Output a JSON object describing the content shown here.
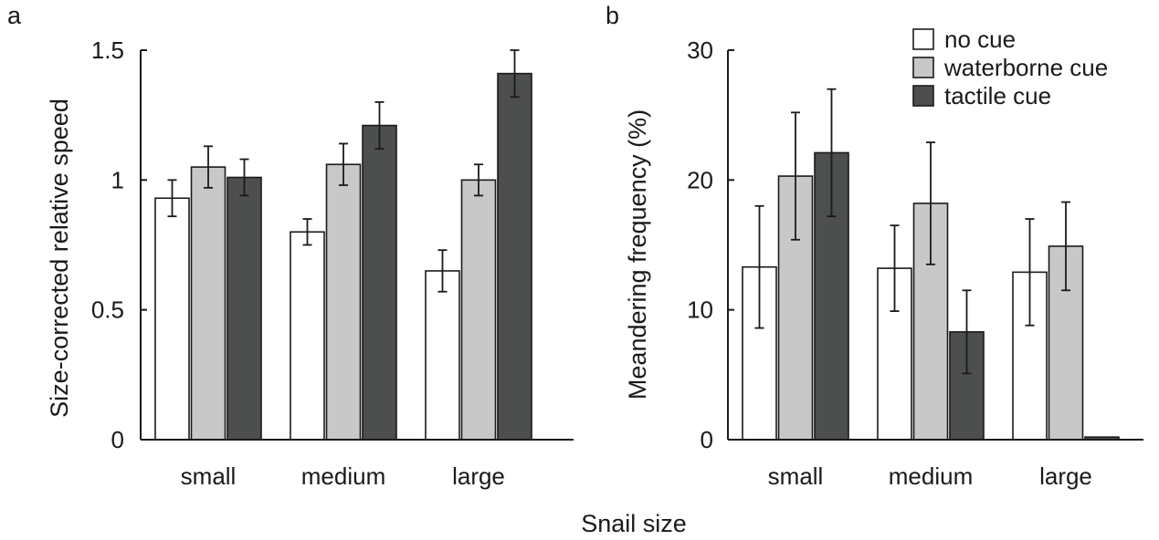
{
  "figure": {
    "shared_xlabel": "Snail size",
    "legend": [
      {
        "label": "no cue",
        "color": "#ffffff"
      },
      {
        "label": "waterborne cue",
        "color": "#c8c8c8"
      },
      {
        "label": "tactile cue",
        "color": "#4d4f4f"
      }
    ]
  },
  "chart_data": [
    {
      "type": "bar",
      "panel": "a",
      "categories": [
        "small",
        "medium",
        "large"
      ],
      "series": [
        {
          "name": "no cue",
          "color": "#ffffff",
          "values": [
            0.93,
            0.8,
            0.65
          ],
          "errors": [
            0.07,
            0.05,
            0.08
          ]
        },
        {
          "name": "waterborne cue",
          "color": "#c8c8c8",
          "values": [
            1.05,
            1.06,
            1.0
          ],
          "errors": [
            0.08,
            0.08,
            0.06
          ]
        },
        {
          "name": "tactile cue",
          "color": "#4d4f4f",
          "values": [
            1.01,
            1.21,
            1.41
          ],
          "errors": [
            0.07,
            0.09,
            0.09
          ]
        }
      ],
      "xlabel": "",
      "ylabel": "Size-corrected relative speed",
      "ylim": [
        0,
        1.5
      ],
      "yticks": [
        "0",
        "0.5",
        "1",
        "1.5"
      ],
      "ytick_values": [
        0,
        0.5,
        1,
        1.5
      ],
      "grid": false
    },
    {
      "type": "bar",
      "panel": "b",
      "categories": [
        "small",
        "medium",
        "large"
      ],
      "series": [
        {
          "name": "no cue",
          "color": "#ffffff",
          "values": [
            13.3,
            13.2,
            12.9
          ],
          "errors": [
            4.7,
            3.3,
            4.1
          ]
        },
        {
          "name": "waterborne cue",
          "color": "#c8c8c8",
          "values": [
            20.3,
            18.2,
            14.9
          ],
          "errors": [
            4.9,
            4.7,
            3.4
          ]
        },
        {
          "name": "tactile cue",
          "color": "#4d4f4f",
          "values": [
            22.1,
            8.3,
            0.2
          ],
          "errors": [
            4.9,
            3.2,
            0
          ]
        }
      ],
      "xlabel": "",
      "ylabel": "Meandering frequency (%)",
      "ylim": [
        0,
        30
      ],
      "yticks": [
        "0",
        "10",
        "20",
        "30"
      ],
      "ytick_values": [
        0,
        10,
        20,
        30
      ],
      "grid": false,
      "legend_position": "top-right"
    }
  ]
}
